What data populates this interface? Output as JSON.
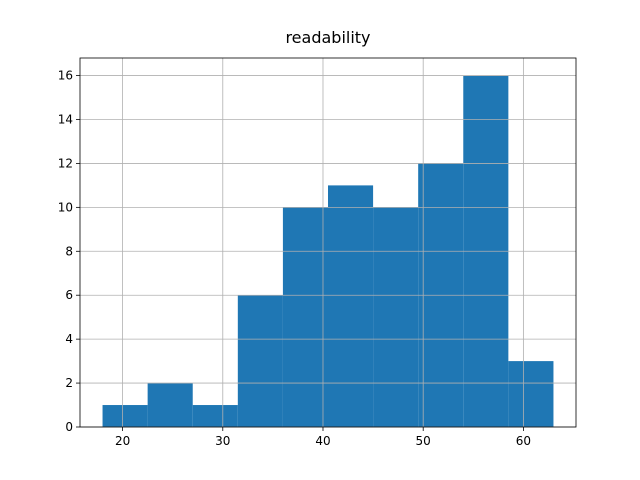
{
  "chart_data": {
    "type": "histogram",
    "title": "readability",
    "bins": [
      18,
      22.5,
      27,
      31.5,
      36,
      40.5,
      45,
      49.5,
      54,
      58.5,
      63
    ],
    "values": [
      1,
      2,
      1,
      6,
      10,
      11,
      10,
      12,
      16,
      3
    ],
    "color": "#1f77b4",
    "xlim": [
      15.75,
      65.25
    ],
    "xticks": [
      20,
      30,
      40,
      50,
      60
    ],
    "ylim": [
      0,
      16.8
    ],
    "yticks": [
      0,
      2,
      4,
      6,
      8,
      10,
      12,
      14,
      16
    ],
    "grid": true
  }
}
